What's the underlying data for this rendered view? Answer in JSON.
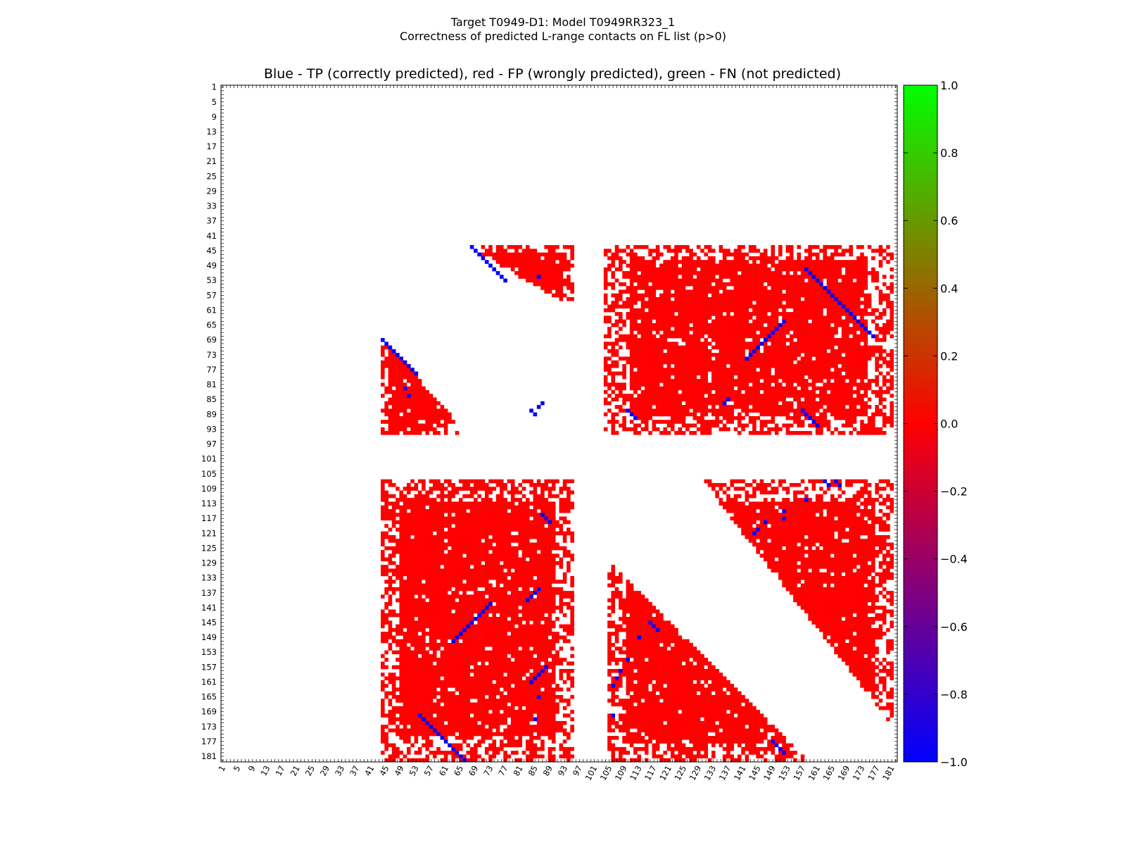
{
  "figure": {
    "title_line1": "Target T0949-D1: Model T0949RR323_1",
    "title_line2": "Correctness of predicted L-range contacts on FL list (p>0)"
  },
  "chart_data": {
    "type": "heatmap",
    "title": "Blue - TP (correctly predicted), red - FP (wrongly predicted), green - FN (not predicted)",
    "xlabel": "",
    "ylabel": "",
    "residue_range": [
      1,
      182
    ],
    "tick_labels": [
      "1",
      "5",
      "9",
      "13",
      "17",
      "21",
      "25",
      "29",
      "33",
      "37",
      "41",
      "45",
      "49",
      "53",
      "57",
      "61",
      "65",
      "69",
      "73",
      "77",
      "81",
      "85",
      "89",
      "93",
      "97",
      "101",
      "105",
      "109",
      "113",
      "117",
      "121",
      "125",
      "129",
      "133",
      "137",
      "141",
      "145",
      "149",
      "153",
      "157",
      "161",
      "165",
      "169",
      "173",
      "177",
      "181"
    ],
    "colorbar": {
      "range": [
        -1.0,
        1.0
      ],
      "tick_labels": [
        "1.0",
        "0.8",
        "0.6",
        "0.4",
        "0.2",
        "0.0",
        "−0.2",
        "−0.4",
        "−0.6",
        "−0.8",
        "−1.0"
      ],
      "colors": [
        "#0000ff",
        "#ff0000",
        "#00ff00"
      ]
    },
    "legend": {
      "TP": "blue",
      "FP": "red",
      "FN": "green"
    },
    "fp_regions": [
      {
        "rows": [
          44,
          60
        ],
        "cols": [
          68,
          95
        ],
        "shape": "upper-triangle"
      },
      {
        "rows": [
          44,
          94
        ],
        "cols": [
          104,
          181
        ],
        "shape": "block"
      },
      {
        "rows": [
          69,
          94
        ],
        "cols": [
          44,
          66
        ],
        "shape": "lower-triangle"
      },
      {
        "rows": [
          107,
          182
        ],
        "cols": [
          44,
          95
        ],
        "shape": "block"
      },
      {
        "rows": [
          107,
          171
        ],
        "cols": [
          131,
          181
        ],
        "shape": "upper-triangle"
      },
      {
        "rows": [
          130,
          182
        ],
        "cols": [
          105,
          157
        ],
        "shape": "lower-triangle"
      }
    ],
    "tp_contacts": [
      [
        44,
        68
      ],
      [
        45,
        69
      ],
      [
        46,
        70
      ],
      [
        47,
        71
      ],
      [
        48,
        72
      ],
      [
        49,
        73
      ],
      [
        50,
        74
      ],
      [
        51,
        75
      ],
      [
        52,
        76
      ],
      [
        53,
        77
      ],
      [
        52,
        86
      ],
      [
        69,
        44
      ],
      [
        70,
        45
      ],
      [
        71,
        46
      ],
      [
        72,
        47
      ],
      [
        73,
        48
      ],
      [
        74,
        49
      ],
      [
        75,
        50
      ],
      [
        76,
        51
      ],
      [
        77,
        52
      ],
      [
        78,
        53
      ],
      [
        82,
        50
      ],
      [
        84,
        51
      ],
      [
        86,
        87
      ],
      [
        87,
        86
      ],
      [
        88,
        84
      ],
      [
        89,
        85
      ],
      [
        116,
        87
      ],
      [
        117,
        88
      ],
      [
        118,
        89
      ],
      [
        136,
        86
      ],
      [
        137,
        85
      ],
      [
        138,
        84
      ],
      [
        139,
        83
      ],
      [
        140,
        73
      ],
      [
        141,
        72
      ],
      [
        142,
        71
      ],
      [
        143,
        70
      ],
      [
        144,
        69
      ],
      [
        145,
        68
      ],
      [
        146,
        67
      ],
      [
        147,
        66
      ],
      [
        148,
        65
      ],
      [
        149,
        64
      ],
      [
        150,
        63
      ],
      [
        157,
        88
      ],
      [
        158,
        87
      ],
      [
        159,
        86
      ],
      [
        160,
        85
      ],
      [
        161,
        84
      ],
      [
        165,
        86
      ],
      [
        171,
        85
      ],
      [
        170,
        54
      ],
      [
        171,
        55
      ],
      [
        172,
        56
      ],
      [
        173,
        57
      ],
      [
        174,
        58
      ],
      [
        175,
        59
      ],
      [
        176,
        60
      ],
      [
        177,
        61
      ],
      [
        178,
        62
      ],
      [
        179,
        63
      ],
      [
        180,
        64
      ],
      [
        181,
        65
      ],
      [
        182,
        66
      ],
      [
        88,
        110
      ],
      [
        89,
        111
      ],
      [
        90,
        112
      ],
      [
        85,
        137
      ],
      [
        86,
        136
      ],
      [
        74,
        142
      ],
      [
        73,
        143
      ],
      [
        72,
        144
      ],
      [
        71,
        145
      ],
      [
        70,
        146
      ],
      [
        69,
        147
      ],
      [
        68,
        148
      ],
      [
        67,
        149
      ],
      [
        66,
        150
      ],
      [
        65,
        151
      ],
      [
        64,
        152
      ],
      [
        50,
        158
      ],
      [
        51,
        159
      ],
      [
        52,
        160
      ],
      [
        53,
        161
      ],
      [
        54,
        162
      ],
      [
        55,
        163
      ],
      [
        56,
        164
      ],
      [
        57,
        165
      ],
      [
        58,
        166
      ],
      [
        59,
        167
      ],
      [
        60,
        168
      ],
      [
        61,
        169
      ],
      [
        62,
        170
      ],
      [
        63,
        171
      ],
      [
        64,
        172
      ],
      [
        65,
        173
      ],
      [
        66,
        174
      ],
      [
        67,
        175
      ],
      [
        68,
        176
      ],
      [
        88,
        157
      ],
      [
        89,
        158
      ],
      [
        90,
        159
      ],
      [
        91,
        160
      ],
      [
        92,
        161
      ],
      [
        107,
        163
      ],
      [
        108,
        164
      ],
      [
        107,
        166
      ],
      [
        108,
        167
      ],
      [
        112,
        158
      ],
      [
        115,
        152
      ],
      [
        118,
        147
      ],
      [
        120,
        145
      ],
      [
        121,
        144
      ],
      [
        117,
        152
      ],
      [
        145,
        116
      ],
      [
        146,
        117
      ],
      [
        147,
        118
      ],
      [
        149,
        113
      ],
      [
        155,
        110
      ],
      [
        158,
        108
      ],
      [
        160,
        107
      ],
      [
        162,
        106
      ],
      [
        170,
        106
      ],
      [
        177,
        149
      ],
      [
        178,
        150
      ],
      [
        179,
        151
      ],
      [
        180,
        152
      ]
    ]
  }
}
